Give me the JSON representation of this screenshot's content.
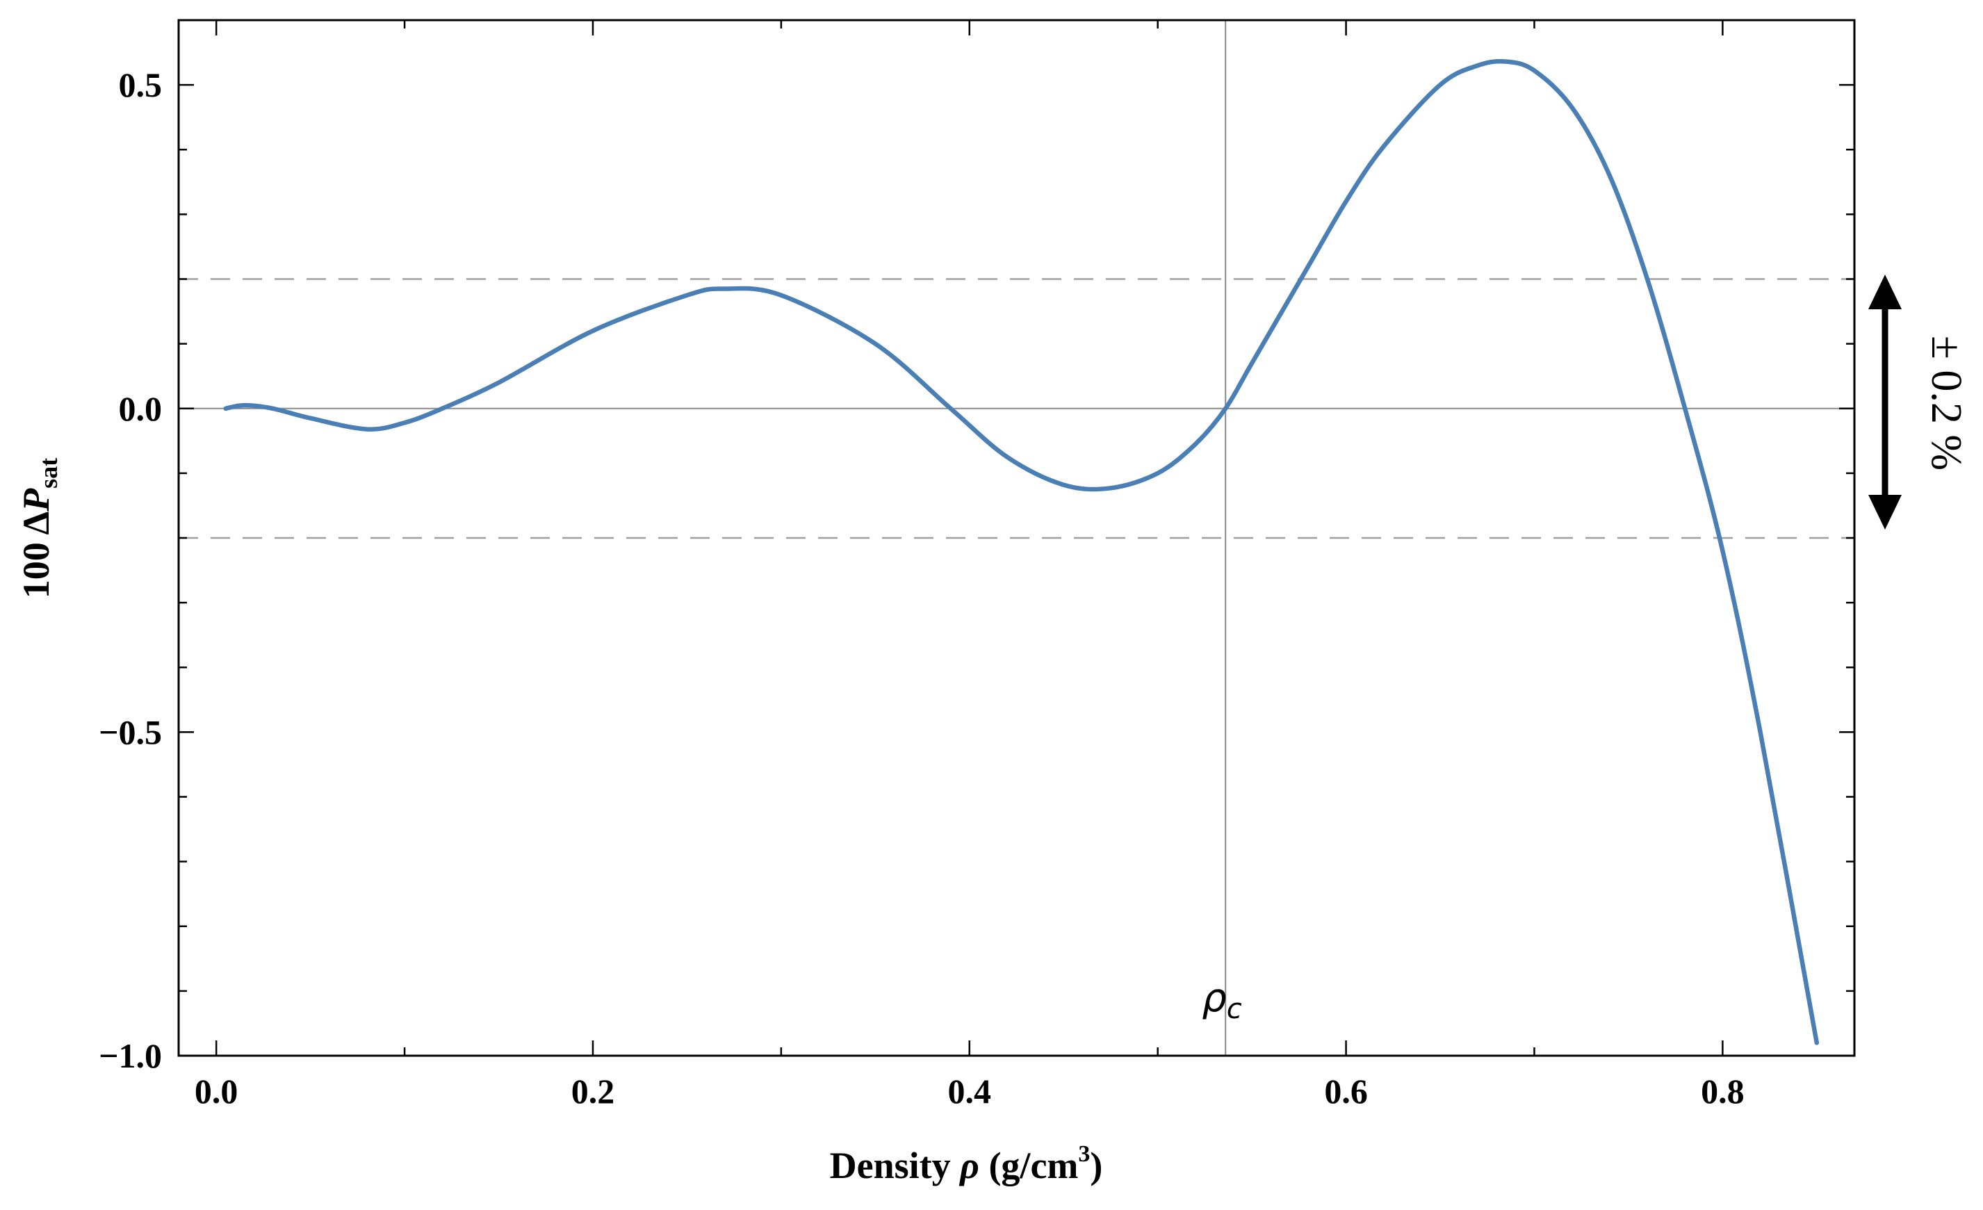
{
  "chart_data": {
    "type": "line",
    "title": "",
    "xlabel": "Density ρ (g/cm3)",
    "xlabel_parts": {
      "word": "Density",
      "symbol": "ρ",
      "unit_open": "(g/cm",
      "unit_sup": "3",
      "unit_close": ")"
    },
    "ylabel": "100 ΔPsat",
    "ylabel_parts": {
      "prefix": "100 Δ",
      "var": "P",
      "sub": "sat"
    },
    "xlim": [
      -0.02,
      0.87
    ],
    "ylim": [
      -1.0,
      0.6
    ],
    "x_ticks": [
      0.0,
      0.2,
      0.4,
      0.6,
      0.8
    ],
    "x_tick_labels": [
      "0.0",
      "0.2",
      "0.4",
      "0.6",
      "0.8"
    ],
    "y_ticks": [
      -1.0,
      -0.5,
      0.0,
      0.5
    ],
    "y_tick_labels": [
      "−1.0",
      "−0.5",
      "0.0",
      "0.5"
    ],
    "y_minor_step": 0.1,
    "x_minor_step": 0.1,
    "grid": false,
    "legend": "none",
    "reference_lines": {
      "horizontal_zero": 0.0,
      "dashed_band": [
        -0.2,
        0.2
      ],
      "vertical_rho_c": 0.536
    },
    "annotations": {
      "rho_c_label": {
        "base": "ρ",
        "sub": "c"
      },
      "band_label": "± 0.2 %"
    },
    "series": [
      {
        "color": "#4a7fb5",
        "x": [
          0.005,
          0.015,
          0.03,
          0.05,
          0.08,
          0.1,
          0.12,
          0.15,
          0.2,
          0.25,
          0.27,
          0.3,
          0.35,
          0.39,
          0.42,
          0.45,
          0.475,
          0.5,
          0.52,
          0.536,
          0.55,
          0.58,
          0.6,
          0.62,
          0.65,
          0.67,
          0.685,
          0.7,
          0.72,
          0.74,
          0.76,
          0.78,
          0.8,
          0.82,
          0.85
        ],
        "y": [
          0.0,
          0.005,
          0.0,
          -0.015,
          -0.032,
          -0.022,
          0.0,
          0.04,
          0.12,
          0.175,
          0.185,
          0.175,
          0.1,
          0.0,
          -0.075,
          -0.118,
          -0.123,
          -0.1,
          -0.055,
          0.0,
          0.07,
          0.22,
          0.32,
          0.405,
          0.5,
          0.53,
          0.536,
          0.522,
          0.465,
          0.36,
          0.2,
          0.0,
          -0.22,
          -0.5,
          -0.98
        ]
      }
    ]
  }
}
